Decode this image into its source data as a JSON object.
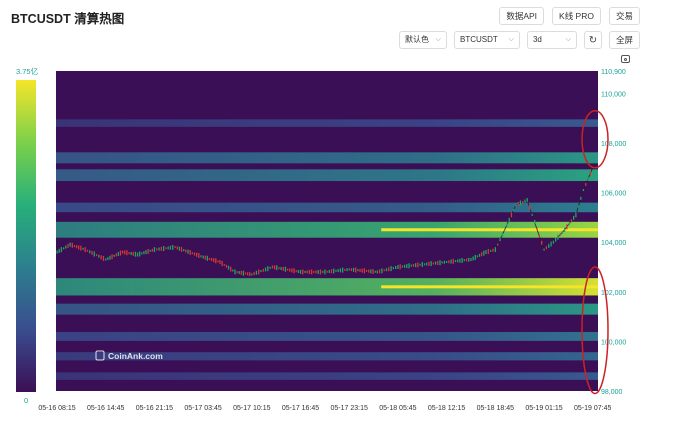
{
  "header": {
    "title": "BTCUSDT 清算热图",
    "buttons": [
      "数据API",
      "K线 PRO",
      "交易"
    ]
  },
  "controls": {
    "color_scheme": "默认色",
    "symbol": "BTCUSDT",
    "range": "3d",
    "refresh_icon": "refresh-icon",
    "fullscreen_label": "全屏",
    "camera_icon": "camera-icon"
  },
  "colorbar": {
    "max_label": "3.75亿",
    "min_label": "0",
    "colors": [
      "#3b0f55",
      "#3a4d8f",
      "#2c7f8e",
      "#28b07a",
      "#7bd14a",
      "#f5e52a"
    ]
  },
  "watermark": "CoinAnk.com",
  "highlight_color": "#cc2222",
  "chart_data": {
    "type": "heatmap",
    "title": "",
    "x_ticks": [
      "05-16 08:15",
      "05-16 14:45",
      "05-16 21:15",
      "05-17 03:45",
      "05-17 10:15",
      "05-17 16:45",
      "05-17 23:15",
      "05-18 05:45",
      "05-18 12:15",
      "05-18 18:45",
      "05-19 01:15",
      "05-19 07:45"
    ],
    "y_ticks": [
      98000,
      100000,
      102000,
      104000,
      106000,
      108000,
      110000,
      110900
    ],
    "ylim": [
      98000,
      110900
    ],
    "colorbar_range": [
      "0",
      "3.75亿"
    ],
    "price_path": {
      "times": [
        "05-16 06:45",
        "05-16 08:15",
        "05-16 10:00",
        "05-16 12:00",
        "05-16 14:45",
        "05-16 17:00",
        "05-16 19:00",
        "05-16 21:15",
        "05-17 00:00",
        "05-17 03:45",
        "05-17 06:00",
        "05-17 08:00",
        "05-17 10:15",
        "05-17 13:00",
        "05-17 16:45",
        "05-17 20:00",
        "05-17 23:15",
        "05-18 03:00",
        "05-18 05:45",
        "05-18 09:00",
        "05-18 12:15",
        "05-18 15:30",
        "05-18 17:30",
        "05-18 18:45",
        "05-18 20:00",
        "05-18 21:30",
        "05-18 23:00",
        "05-19 00:00",
        "05-19 01:15",
        "05-19 02:30",
        "05-19 04:00",
        "05-19 05:30",
        "05-19 06:30",
        "05-19 07:45"
      ],
      "price": [
        103800,
        103600,
        103900,
        103700,
        103300,
        103600,
        103500,
        103700,
        103800,
        103400,
        103200,
        102800,
        102700,
        103000,
        102800,
        102800,
        102900,
        102800,
        103000,
        103100,
        103200,
        103300,
        103600,
        103700,
        104500,
        105500,
        105700,
        104800,
        103700,
        104000,
        104500,
        105100,
        106100,
        107000
      ]
    },
    "liquidation_bands": [
      {
        "price": 108800,
        "intensity": 0.25
      },
      {
        "price": 107400,
        "intensity": 0.5
      },
      {
        "price": 106700,
        "intensity": 0.55
      },
      {
        "price": 105400,
        "intensity": 0.4
      },
      {
        "price": 104500,
        "intensity": 0.85
      },
      {
        "price": 102200,
        "intensity": 0.95
      },
      {
        "price": 101300,
        "intensity": 0.5
      },
      {
        "price": 100200,
        "intensity": 0.35
      },
      {
        "price": 99400,
        "intensity": 0.3
      },
      {
        "price": 98600,
        "intensity": 0.25
      }
    ],
    "highlights": [
      {
        "price_low": 107000,
        "price_high": 109300
      },
      {
        "price_low": 97900,
        "price_high": 103000
      }
    ]
  }
}
